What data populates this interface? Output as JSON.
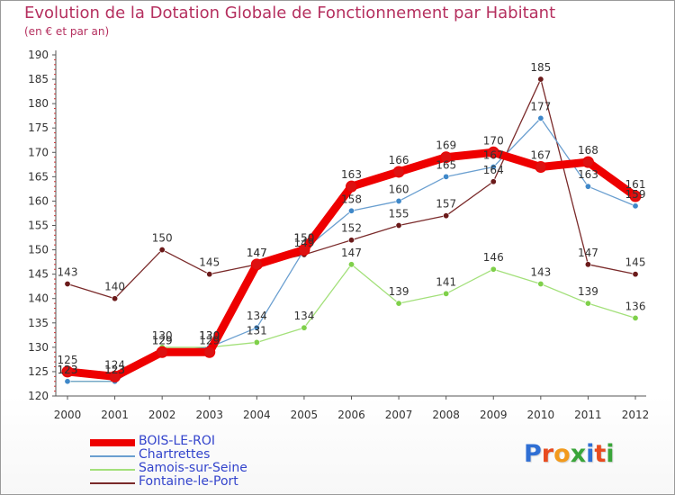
{
  "title": "Evolution de la Dotation Globale de Fonctionnement par Habitant",
  "subtitle": "(en € et par an)",
  "logo": {
    "letters": [
      "P",
      "r",
      "o",
      "x",
      "i",
      "t",
      "i"
    ],
    "colors": [
      "#2f6fd4",
      "#e84b1f",
      "#f29a1c",
      "#3aa53a",
      "#2f6fd4",
      "#e84b1f",
      "#3aa53a"
    ]
  },
  "colors": {
    "title": "#b5305f",
    "legend_text": "#3344cc",
    "axis": "#555555",
    "label": "#333333"
  },
  "chart_data": {
    "type": "line",
    "title": "Evolution de la Dotation Globale de Fonctionnement par Habitant",
    "subtitle": "(en € et par an)",
    "xlabel": "",
    "ylabel": "",
    "categories": [
      "2000",
      "2001",
      "2002",
      "2003",
      "2004",
      "2005",
      "2006",
      "2007",
      "2008",
      "2009",
      "2010",
      "2011",
      "2012"
    ],
    "ylim": [
      120,
      190
    ],
    "yticks": [
      120,
      125,
      130,
      135,
      140,
      145,
      150,
      155,
      160,
      165,
      170,
      175,
      180,
      185,
      190
    ],
    "grid": false,
    "legend_position": "bottom-left",
    "series": [
      {
        "name": "BOIS-LE-ROI",
        "color": "#ee0000",
        "marker": "#dd1111",
        "values": [
          125,
          124,
          129,
          129,
          147,
          150,
          163,
          166,
          169,
          170,
          167,
          168,
          161
        ]
      },
      {
        "name": "Chartrettes",
        "color": "#6a9fd0",
        "marker": "#3f88c9",
        "values": [
          123,
          123,
          129,
          130,
          134,
          150,
          158,
          160,
          165,
          167,
          177,
          163,
          159
        ]
      },
      {
        "name": "Samois-sur-Seine",
        "color": "#a3e07a",
        "marker": "#7fd04a",
        "values": [
          123,
          123,
          130,
          130,
          131,
          134,
          147,
          139,
          141,
          146,
          143,
          139,
          136
        ]
      },
      {
        "name": "Fontaine-le-Port",
        "color": "#7a2a2a",
        "marker": "#6b1a1a",
        "values": [
          143,
          140,
          150,
          145,
          147,
          149,
          152,
          155,
          157,
          164,
          185,
          147,
          145
        ]
      }
    ]
  }
}
